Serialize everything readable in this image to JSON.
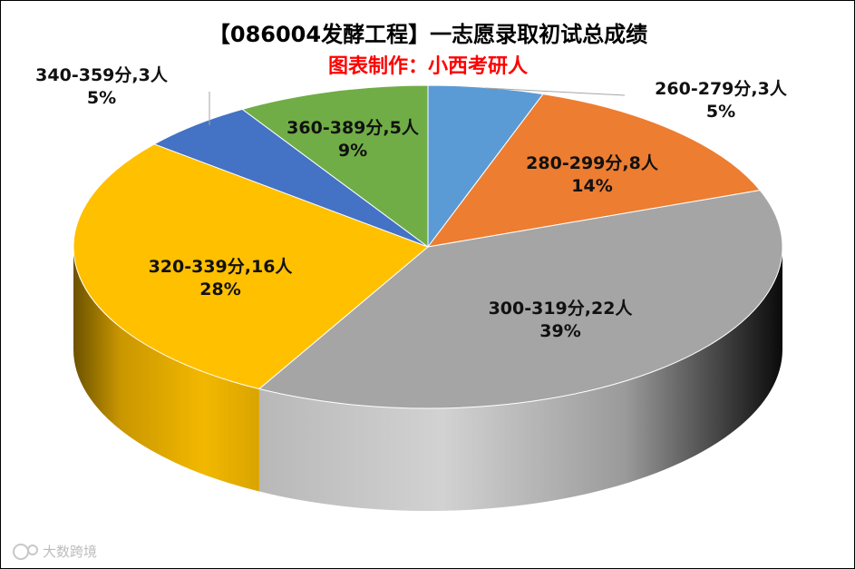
{
  "chart_data": {
    "type": "pie",
    "title": "【086004发酵工程】一志愿录取初试总成绩",
    "subtitle": "图表制作：小西考研人",
    "unit": "人",
    "slices": [
      {
        "category": "260-279分",
        "count": 3,
        "percent_label": "5%",
        "label": "260-279分,3人",
        "color": "#5B9BD5"
      },
      {
        "category": "280-299分",
        "count": 8,
        "percent_label": "14%",
        "label": "280-299分,8人",
        "color": "#ED7D31"
      },
      {
        "category": "300-319分",
        "count": 22,
        "percent_label": "39%",
        "label": "300-319分,22人",
        "color": "#A5A5A5"
      },
      {
        "category": "320-339分",
        "count": 16,
        "percent_label": "28%",
        "label": "320-339分,16人",
        "color": "#FFC000"
      },
      {
        "category": "340-359分",
        "count": 3,
        "percent_label": "5%",
        "label": "340-359分,3人",
        "color": "#4472C4"
      },
      {
        "category": "360-389分",
        "count": 5,
        "percent_label": "9%",
        "label": "360-389分,5人",
        "color": "#70AD47"
      }
    ],
    "start_angle_deg": 0,
    "direction": "clockwise",
    "style": "3d",
    "legend": "none"
  },
  "watermark": "大数跨境"
}
